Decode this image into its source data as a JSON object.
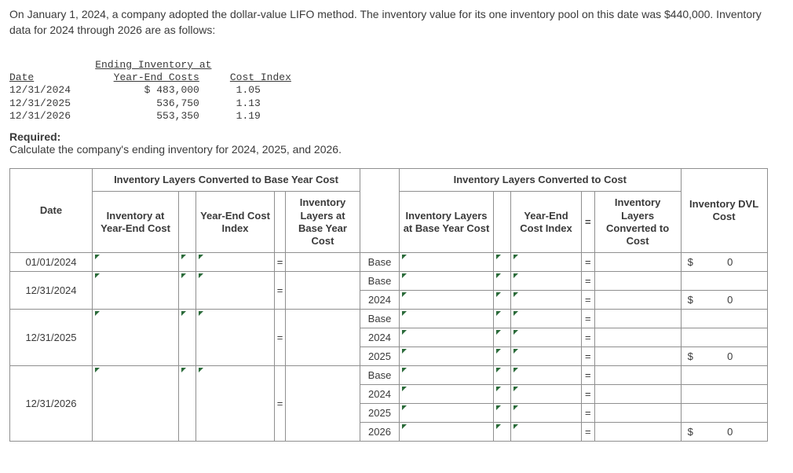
{
  "intro_text": "On January 1, 2024, a company adopted the dollar-value LIFO method. The inventory value for its one inventory pool on this date was $440,000. Inventory data for 2024 through 2026 are as follows:",
  "mono": {
    "col1_hdr": "Date",
    "col2_hdr": "Ending Inventory at\nYear-End Costs",
    "col3_hdr": "Cost Index",
    "rows": [
      {
        "d": "12/31/2024",
        "v": "$ 483,000",
        "i": "1.05"
      },
      {
        "d": "12/31/2025",
        "v": "536,750",
        "i": "1.13"
      },
      {
        "d": "12/31/2026",
        "v": "553,350",
        "i": "1.19"
      }
    ]
  },
  "required_label": "Required:",
  "required_text": "Calculate the company's ending inventory for 2024, 2025, and 2026.",
  "headers": {
    "date": "Date",
    "grpA": "Inventory Layers Converted to Base Year Cost",
    "grpB": "Inventory Layers Converted to Cost",
    "dvl": "Inventory DVL Cost",
    "invYE": "Inventory at Year-End Cost",
    "yeIdx": "Year-End Cost Index",
    "layersBC": "Inventory Layers at Base Year Cost",
    "layersB2": "Inventory Layers at Base Year Cost",
    "yeIdx2": "Year-End Cost Index",
    "conv": "Inventory Layers Converted to Cost"
  },
  "labels": {
    "base": "Base",
    "y2024": "2024",
    "y2025": "2025",
    "y2026": "2026"
  },
  "dates": {
    "d0": "01/01/2024",
    "d1": "12/31/2024",
    "d2": "12/31/2025",
    "d3": "12/31/2026"
  },
  "eq": "=",
  "cur": "$",
  "zero": "0"
}
